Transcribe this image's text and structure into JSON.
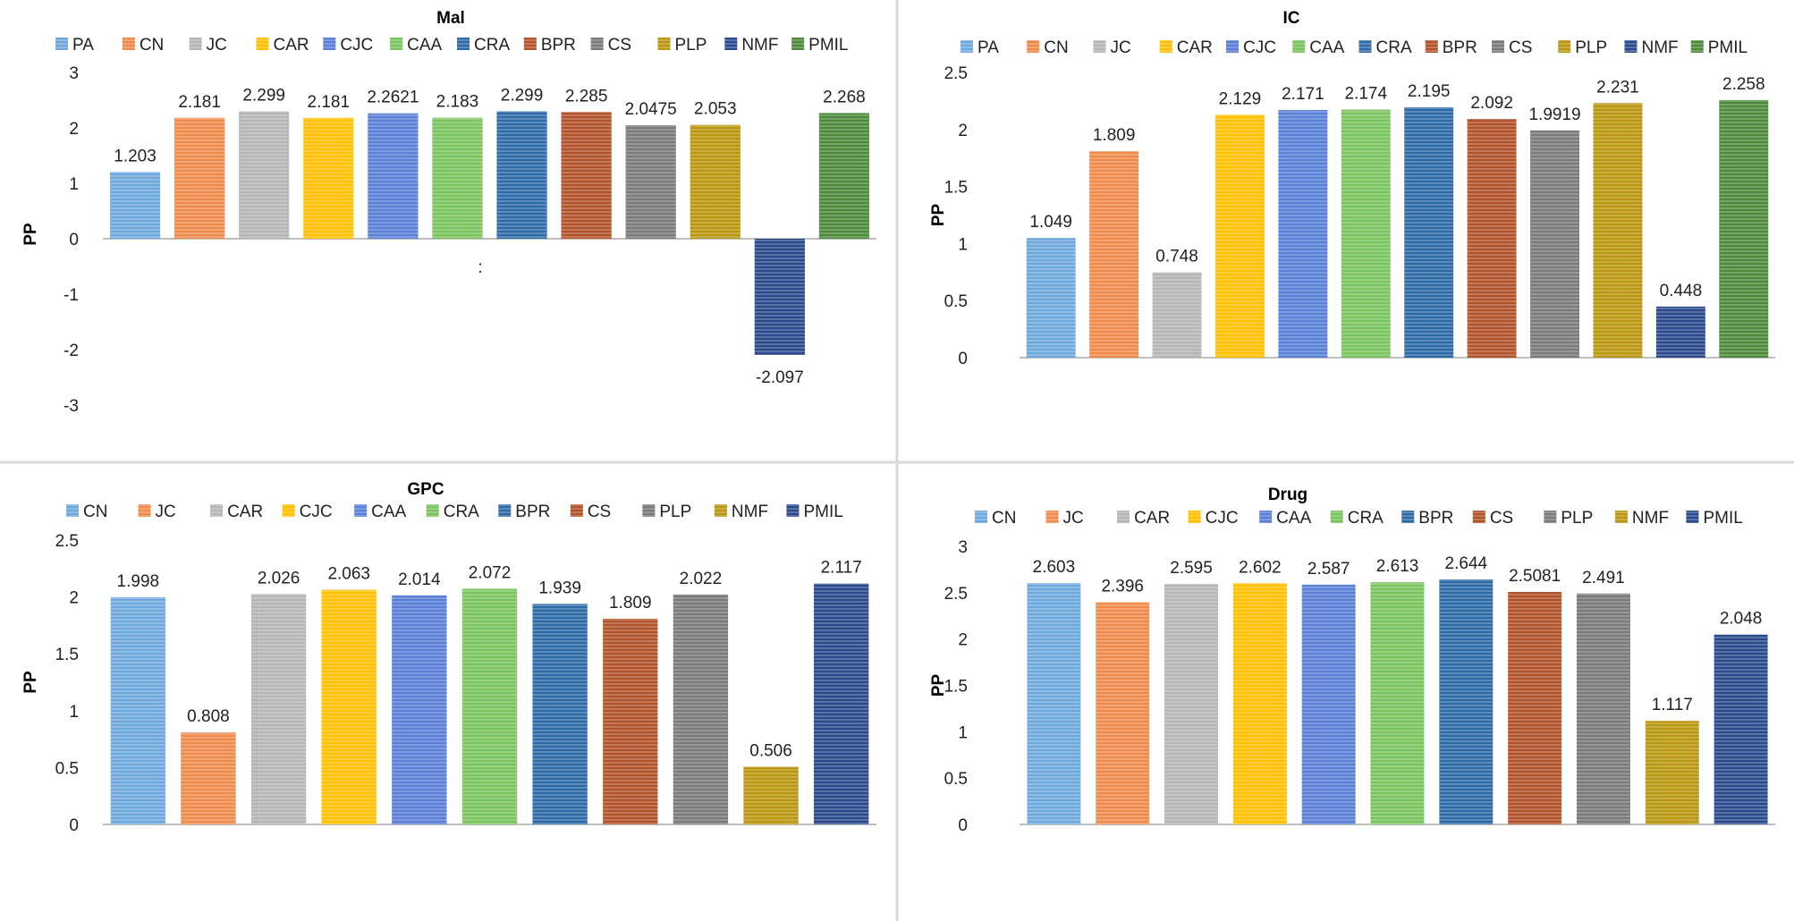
{
  "colors": {
    "PA": "#6fa8dc",
    "CN": "#f08a4b",
    "JC": "#b5b5b5",
    "CAR": "#ffc000",
    "CJC": "#5b7fd6",
    "CAA": "#7bc35e",
    "CRA": "#2f6aa8",
    "BPR": "#b2532a",
    "CS": "#7a7a7a",
    "PLP": "#b8960f",
    "NMF": "#2b4a8c",
    "PMIL": "#4d8a3a",
    "divider": "#d9d9d9",
    "axis": "#bfbfbf"
  },
  "stray_mark": ":",
  "chart_data": [
    {
      "type": "bar",
      "title": "Mal",
      "ylabel": "PP",
      "xlabel": "",
      "ylim": [
        -3,
        3
      ],
      "yticks": [
        "3",
        "2",
        "1",
        "0",
        "-1",
        "-2",
        "-3"
      ],
      "categories": [
        "PA",
        "CN",
        "JC",
        "CAR",
        "CJC",
        "CAA",
        "CRA",
        "BPR",
        "CS",
        "PLP",
        "NMF",
        "PMIL"
      ],
      "values": [
        1.203,
        2.181,
        2.299,
        2.181,
        2.2621,
        2.183,
        2.299,
        2.285,
        2.0475,
        2.053,
        -2.097,
        2.268
      ],
      "labels": [
        "1.203",
        "2.181",
        "2.299",
        "2.181",
        "2.2621",
        "2.183",
        "2.299",
        "2.285",
        "2.0475",
        "2.053",
        "-2.097",
        "2.268"
      ],
      "legend": "top"
    },
    {
      "type": "bar",
      "title": "IC",
      "ylabel": "PP",
      "xlabel": "",
      "ylim": [
        0,
        2.5
      ],
      "yticks": [
        "2.5",
        "2",
        "1.5",
        "1",
        "0.5",
        "0"
      ],
      "categories": [
        "PA",
        "CN",
        "JC",
        "CAR",
        "CJC",
        "CAA",
        "CRA",
        "BPR",
        "CS",
        "PLP",
        "NMF",
        "PMIL"
      ],
      "values": [
        1.049,
        1.809,
        0.748,
        2.129,
        2.171,
        2.174,
        2.195,
        2.092,
        1.9919,
        2.231,
        0.448,
        2.258
      ],
      "labels": [
        "1.049",
        "1.809",
        "0.748",
        "2.129",
        "2.171",
        "2.174",
        "2.195",
        "2.092",
        "1.9919",
        "2.231",
        "0.448",
        "2.258"
      ],
      "legend": "top"
    },
    {
      "type": "bar",
      "title": "GPC",
      "ylabel": "PP",
      "xlabel": "",
      "ylim": [
        0,
        2.5
      ],
      "yticks": [
        "2.5",
        "2",
        "1.5",
        "1",
        "0.5",
        "0"
      ],
      "categories": [
        "CN",
        "JC",
        "CAR",
        "CJC",
        "CAA",
        "CRA",
        "BPR",
        "CS",
        "PLP",
        "NMF",
        "PMIL"
      ],
      "bar_colors": [
        "PA",
        "CN",
        "JC",
        "CAR",
        "CJC",
        "CAA",
        "CRA",
        "BPR",
        "CS",
        "PLP",
        "NMF"
      ],
      "values": [
        1.998,
        0.808,
        2.026,
        2.063,
        2.014,
        2.072,
        1.939,
        1.809,
        2.022,
        0.506,
        2.117
      ],
      "labels": [
        "1.998",
        "0.808",
        "2.026",
        "2.063",
        "2.014",
        "2.072",
        "1.939",
        "1.809",
        "2.022",
        "0.506",
        "2.117"
      ],
      "legend": "top"
    },
    {
      "type": "bar",
      "title": "Drug",
      "ylabel": "PP",
      "xlabel": "",
      "ylim": [
        0,
        3
      ],
      "yticks": [
        "3",
        "2.5",
        "2",
        "1.5",
        "1",
        "0.5",
        "0"
      ],
      "categories": [
        "CN",
        "JC",
        "CAR",
        "CJC",
        "CAA",
        "CRA",
        "BPR",
        "CS",
        "PLP",
        "NMF",
        "PMIL"
      ],
      "bar_colors": [
        "PA",
        "CN",
        "JC",
        "CAR",
        "CJC",
        "CAA",
        "CRA",
        "BPR",
        "CS",
        "PLP",
        "NMF"
      ],
      "values": [
        2.603,
        2.396,
        2.595,
        2.602,
        2.587,
        2.613,
        2.644,
        2.5081,
        2.491,
        1.117,
        2.048
      ],
      "labels": [
        "2.603",
        "2.396",
        "2.595",
        "2.602",
        "2.587",
        "2.613",
        "2.644",
        "2.5081",
        "2.491",
        "1.117",
        "2.048"
      ],
      "legend": "top"
    }
  ]
}
